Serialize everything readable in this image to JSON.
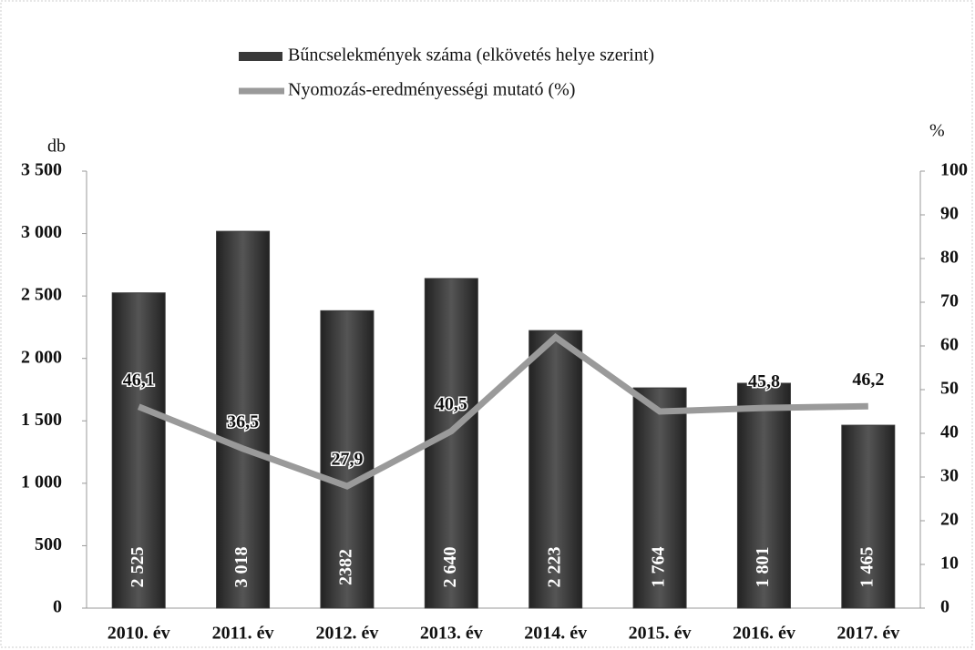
{
  "chart_data": {
    "type": "bar_line",
    "categories": [
      "2010. év",
      "2011. év",
      "2012. év",
      "2013. év",
      "2014. év",
      "2015. év",
      "2016. év",
      "2017. év"
    ],
    "series": [
      {
        "name": "Bűncselekmények száma (elkövetés helye szerint)",
        "type": "bar",
        "color": "#3a3a3a",
        "values": [
          2525,
          3018,
          2382,
          2640,
          2223,
          1764,
          1801,
          1465
        ],
        "value_labels": [
          "2 525",
          "3 018",
          "2382",
          "2 640",
          "2 223",
          "1 764",
          "1 801",
          "1 465"
        ]
      },
      {
        "name": "Nyomozás-eredményességi mutató (%)",
        "type": "line",
        "axis": "y2",
        "color": "#9a9a9a",
        "values": [
          46.1,
          36.5,
          27.9,
          40.5,
          62,
          45,
          45.8,
          46.2
        ],
        "value_labels": [
          "46,1",
          "36,5",
          "27,9",
          "40,5",
          null,
          null,
          "45,8",
          "46,2"
        ]
      }
    ],
    "y_label": "db",
    "y2_label": "%",
    "ylim": [
      0,
      3500
    ],
    "yticks": [
      0,
      500,
      {
        "value": 1000,
        "label": "1 000"
      },
      {
        "value": 1500,
        "label": "1 500"
      },
      {
        "value": 2000,
        "label": "2 000"
      },
      {
        "value": 2500,
        "label": "2 500"
      },
      {
        "value": 3000,
        "label": "3 000"
      },
      {
        "value": 3500,
        "label": "3 500"
      }
    ],
    "y2lim": [
      0,
      100
    ],
    "y2ticks": [
      0,
      10,
      20,
      30,
      40,
      50,
      60,
      70,
      80,
      90,
      100
    ]
  }
}
